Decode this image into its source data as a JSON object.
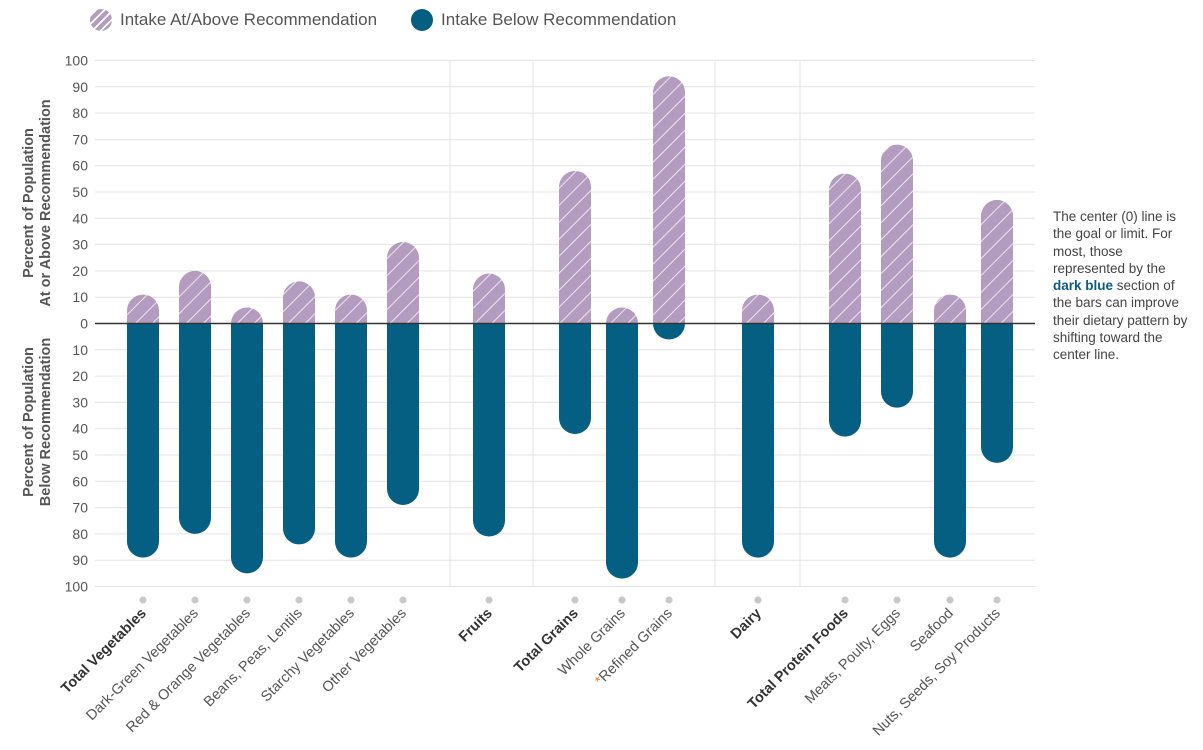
{
  "legend": {
    "above_label": "Intake At/Above Recommendation",
    "below_label": "Intake Below Recommendation"
  },
  "y_axis": {
    "upper_label_line1": "Percent of Population",
    "upper_label_line2": "At or Above Recommendation",
    "lower_label_line1": "Percent of Population",
    "lower_label_line2": "Below Recommendation"
  },
  "note": {
    "before": "The center (0) line is the goal or limit. For most, those represented by the ",
    "highlight": "dark blue",
    "after": " section of the bars can improve their dietary pattern by shifting toward the center line."
  },
  "chart_data": {
    "type": "bar",
    "categories": [
      "Total Vegetables",
      "Dark-Green Vegetables",
      "Red & Orange Vegetables",
      "Beans, Peas, Lentils",
      "Starchy Vegetables",
      "Other Vegetables",
      "Fruits",
      "Total Grains",
      "Whole Grains",
      "Refined Grains",
      "Dairy",
      "Total Protein Foods",
      "Meats, Poulty, Eggs",
      "Seafood",
      "Nuts, Seeds, Soy Products"
    ],
    "bold_categories": [
      "Total Vegetables",
      "Fruits",
      "Total Grains",
      "Dairy",
      "Total Protein Foods"
    ],
    "asterisk_categories": [
      "Refined Grains"
    ],
    "groups": [
      {
        "categories": [
          "Total Vegetables",
          "Dark-Green Vegetables",
          "Red & Orange Vegetables",
          "Beans, Peas, Lentils",
          "Starchy Vegetables",
          "Other Vegetables"
        ]
      },
      {
        "categories": [
          "Fruits"
        ]
      },
      {
        "categories": [
          "Total Grains",
          "Whole Grains",
          "Refined Grains"
        ]
      },
      {
        "categories": [
          "Dairy"
        ]
      },
      {
        "categories": [
          "Total Protein Foods",
          "Meats, Poulty, Eggs",
          "Seafood",
          "Nuts, Seeds, Soy Products"
        ]
      }
    ],
    "series": [
      {
        "name": "Intake At/Above Recommendation",
        "color": "#b49cc0",
        "values": [
          11,
          20,
          5,
          16,
          11,
          31,
          19,
          58,
          3,
          94,
          11,
          57,
          68,
          11,
          47
        ]
      },
      {
        "name": "Intake Below Recommendation",
        "color": "#045f82",
        "values": [
          89,
          80,
          95,
          84,
          89,
          69,
          81,
          42,
          97,
          6,
          89,
          43,
          32,
          89,
          53
        ]
      }
    ],
    "y_ticks_up": [
      0,
      10,
      20,
      30,
      40,
      50,
      60,
      70,
      80,
      90,
      100
    ],
    "y_ticks_down": [
      10,
      20,
      30,
      40,
      50,
      60,
      70,
      80,
      90,
      100
    ],
    "ylim": [
      -100,
      100
    ],
    "grid": true,
    "legend_position": "top-left",
    "asterisk_color": "#f07c22",
    "axis_color": "#333333",
    "grid_color": "#e3e3e3"
  }
}
